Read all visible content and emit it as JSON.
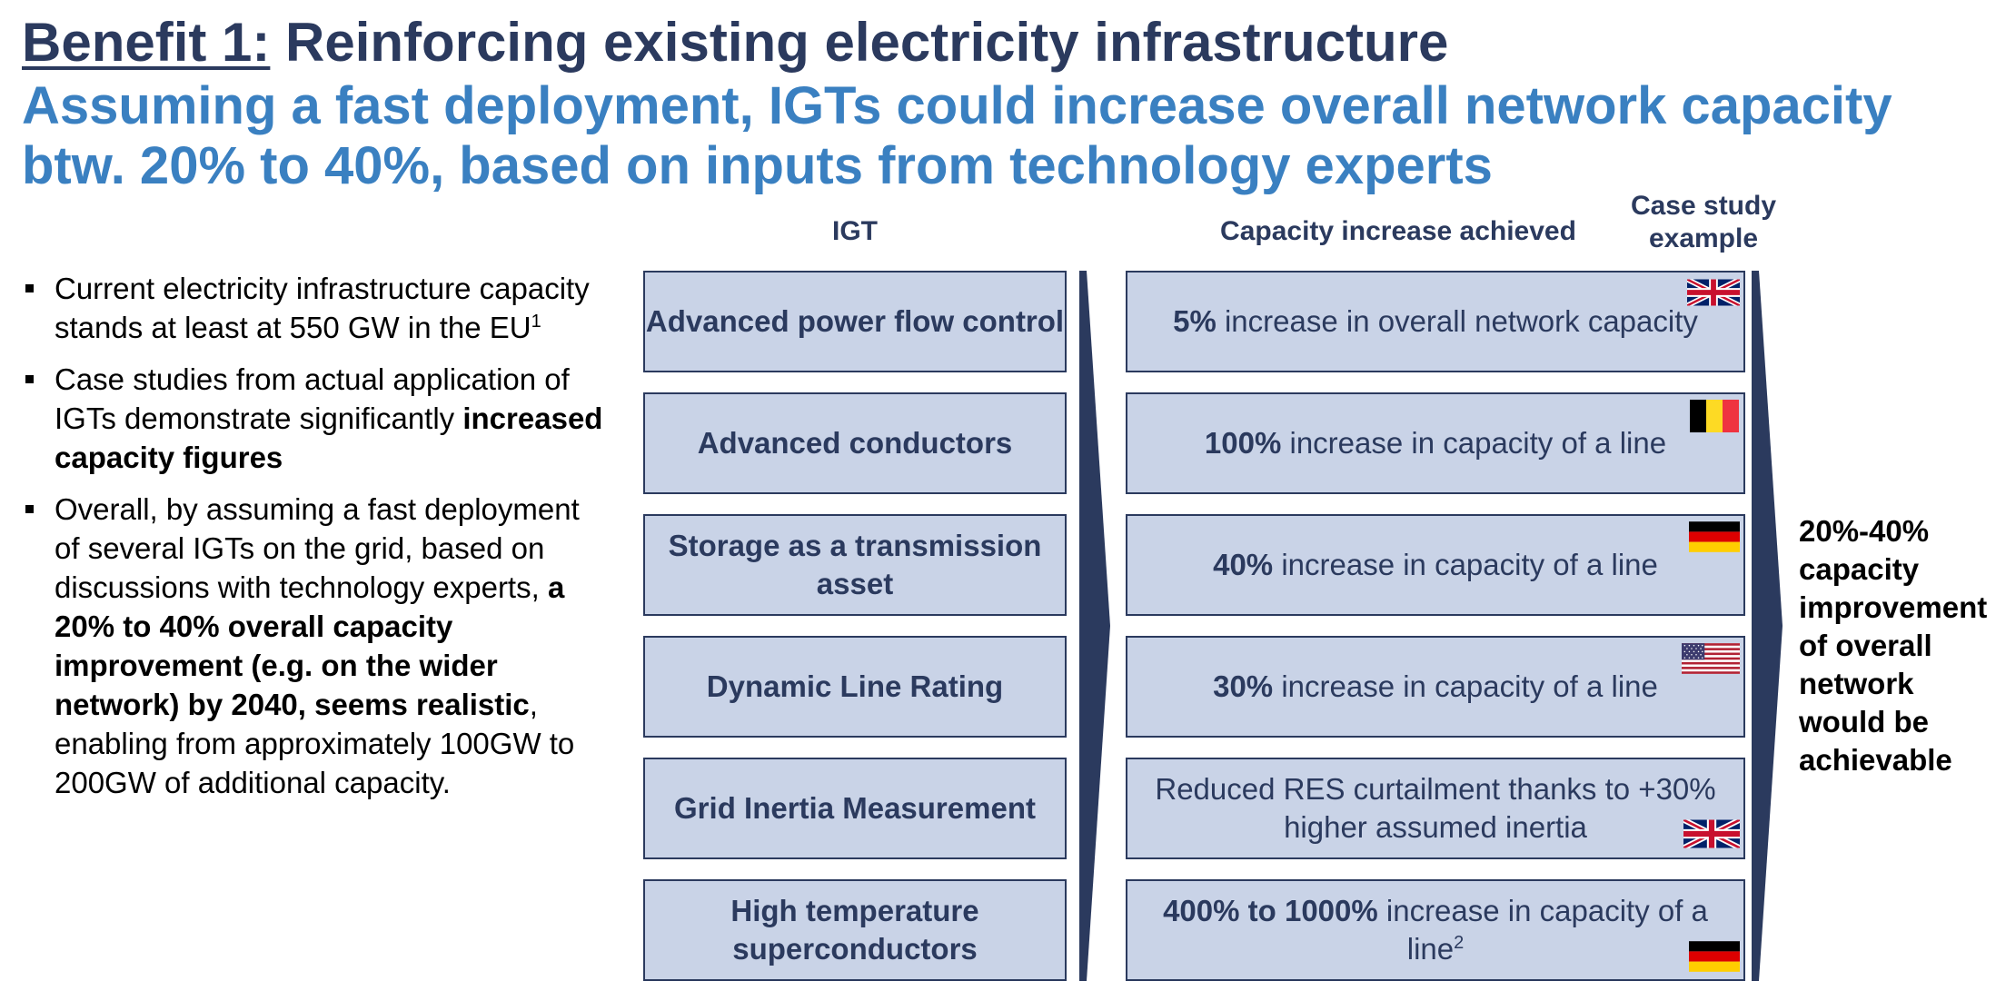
{
  "header": {
    "title_prefix": "Benefit 1:",
    "title_rest": "Reinforcing existing electricity infrastructure",
    "subtitle": "Assuming a fast deployment, IGTs could increase overall network capacity btw. 20% to 40%, based on inputs from technology experts"
  },
  "columns": {
    "igt": "IGT",
    "capacity": "Capacity increase achieved",
    "case_study_line1": "Case study",
    "case_study_line2": "example"
  },
  "bullets": {
    "b1_text": "Current electricity infrastructure capacity stands at least at 550 GW in the EU",
    "b1_sup": "1",
    "b2_text": "Case studies from actual application of IGTs demonstrate significantly ",
    "b2_bold": "increased capacity figures",
    "b3_pre": "Overall, by assuming a fast deployment of several IGTs on the grid, based on discussions with technology experts, ",
    "b3_bold": "a 20% to 40% overall capacity improvement (e.g. on the wider network) by 2040, seems realistic",
    "b3_post": ", enabling from approximately 100GW to 200GW of additional capacity."
  },
  "rows": [
    {
      "igt": "Advanced power flow control",
      "cap_bold": "5%",
      "cap_text": " increase in overall network capacity",
      "flag": "uk-flag-icon"
    },
    {
      "igt": "Advanced conductors",
      "cap_bold": "100%",
      "cap_text": " increase in capacity of a line",
      "flag": "belgium-flag-icon"
    },
    {
      "igt": "Storage as a transmission asset",
      "cap_bold": "40%",
      "cap_text": " increase in capacity of a line",
      "flag": "germany-flag-icon"
    },
    {
      "igt": "Dynamic Line Rating",
      "cap_bold": "30%",
      "cap_text": " increase in capacity of a line",
      "flag": "usa-flag-icon"
    },
    {
      "igt": "Grid Inertia Measurement",
      "cap_bold": "",
      "cap_text": "Reduced RES curtailment thanks to +30% higher assumed inertia",
      "flag": "uk-flag-icon"
    },
    {
      "igt": "High temperature superconductors",
      "cap_bold": "400% to 1000%",
      "cap_text": " increase in capacity of a line",
      "cap_sup": "2",
      "flag": "germany-flag-icon"
    }
  ],
  "conclusion": "20%-40% capacity improvement of overall network would be achievable",
  "colors": {
    "navy": "#2b3a5e",
    "blue": "#3a80c1",
    "box_fill": "#c9d3e7"
  }
}
